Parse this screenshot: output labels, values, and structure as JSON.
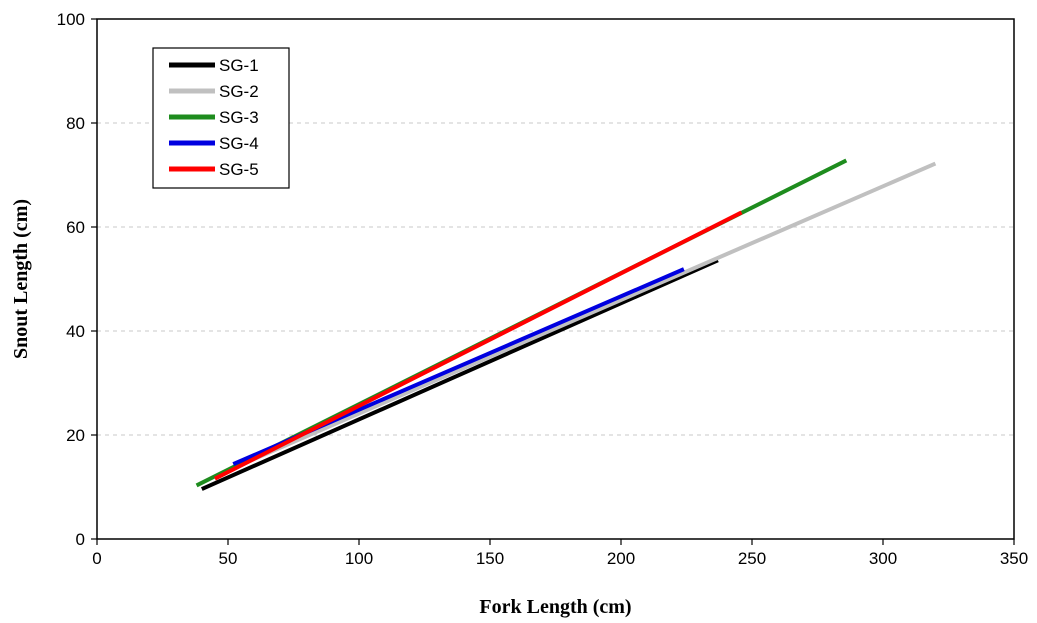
{
  "chart_data": {
    "type": "line",
    "title": "",
    "xlabel": "Fork Length (cm)",
    "ylabel": "Snout Length (cm)",
    "xlim": [
      0,
      350
    ],
    "ylim": [
      0,
      100
    ],
    "xticks": [
      0,
      50,
      100,
      150,
      200,
      250,
      300,
      350
    ],
    "yticks": [
      0,
      20,
      40,
      60,
      80,
      100
    ],
    "grid": {
      "y": true,
      "x": false,
      "style": "dashed"
    },
    "legend": {
      "position": "top-left"
    },
    "series": [
      {
        "name": "SG-1",
        "color": "#000000",
        "x": [
          40,
          237
        ],
        "y": [
          9.6,
          53.6
        ]
      },
      {
        "name": "SG-2",
        "color": "#c0c0c0",
        "x": [
          50,
          320
        ],
        "y": [
          13.2,
          72.2
        ]
      },
      {
        "name": "SG-3",
        "color": "#1e8c1e",
        "x": [
          38,
          286
        ],
        "y": [
          10.3,
          72.8
        ]
      },
      {
        "name": "SG-4",
        "color": "#0000e0",
        "x": [
          52,
          224
        ],
        "y": [
          14.4,
          51.9
        ]
      },
      {
        "name": "SG-5",
        "color": "#ff0000",
        "x": [
          45,
          246
        ],
        "y": [
          11.6,
          62.8
        ]
      }
    ]
  }
}
